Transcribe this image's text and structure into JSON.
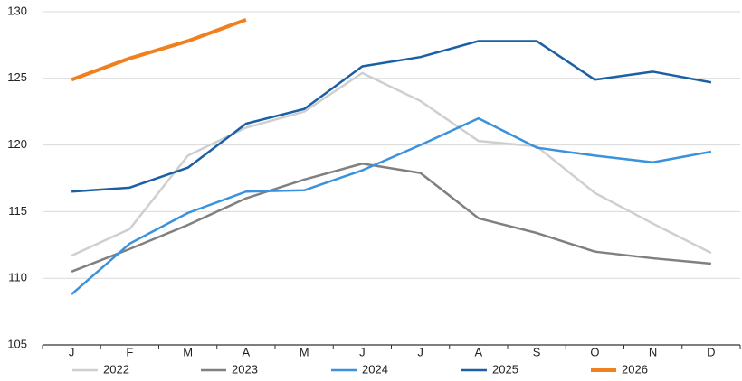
{
  "chart_data": {
    "type": "line",
    "categories": [
      "J",
      "F",
      "M",
      "A",
      "M",
      "J",
      "J",
      "A",
      "S",
      "O",
      "N",
      "D"
    ],
    "series": [
      {
        "name": "2022",
        "color": "#cfcfcf",
        "values": [
          111.7,
          113.7,
          119.2,
          121.3,
          122.5,
          125.4,
          123.3,
          120.3,
          119.9,
          116.4,
          114.1,
          111.9
        ]
      },
      {
        "name": "2023",
        "color": "#808080",
        "values": [
          110.5,
          112.2,
          114.0,
          116.0,
          117.4,
          118.6,
          117.9,
          114.5,
          113.4,
          112.0,
          111.5,
          111.1
        ]
      },
      {
        "name": "2024",
        "color": "#3a91dc",
        "values": [
          108.8,
          112.6,
          114.9,
          116.5,
          116.6,
          118.1,
          120.0,
          122.0,
          119.8,
          119.2,
          118.7,
          119.5
        ]
      },
      {
        "name": "2025",
        "color": "#1b5fa4",
        "values": [
          116.5,
          116.8,
          118.3,
          121.6,
          122.7,
          125.9,
          126.6,
          127.8,
          127.8,
          124.9,
          125.5,
          124.7
        ]
      },
      {
        "name": "2026",
        "color": "#f07f1d",
        "values": [
          124.9,
          126.5,
          127.8,
          129.4,
          null,
          null,
          null,
          null,
          null,
          null,
          null,
          null
        ]
      }
    ],
    "ylim": [
      105,
      130
    ],
    "yticks": [
      105,
      110,
      115,
      120,
      125,
      130
    ],
    "grid": true
  }
}
